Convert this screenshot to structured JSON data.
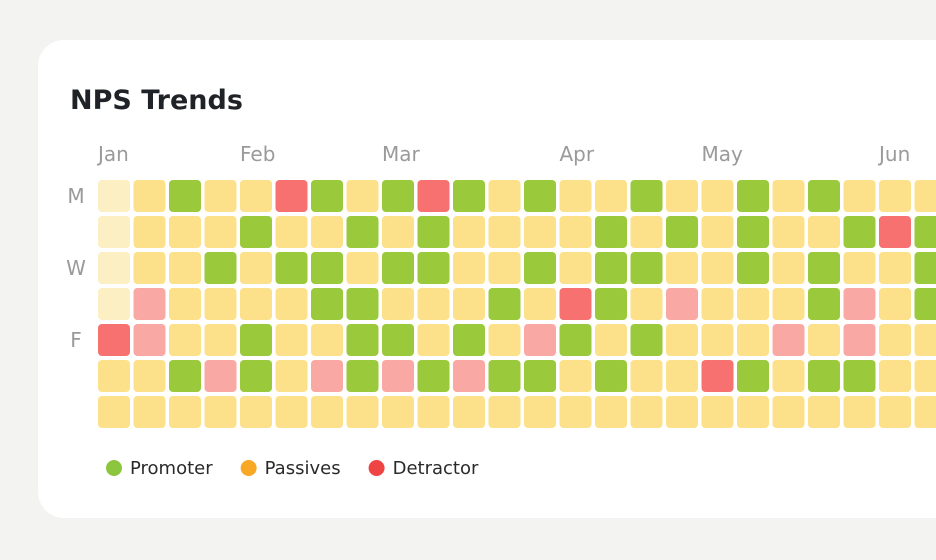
{
  "title": "NPS Trends",
  "columns": [
    "Jan",
    null,
    null,
    null,
    "Feb",
    null,
    null,
    null,
    "Mar",
    null,
    null,
    null,
    null,
    "Apr",
    null,
    null,
    null,
    "May",
    null,
    null,
    null,
    null,
    "Jun",
    null
  ],
  "rows": [
    "M",
    null,
    "W",
    null,
    "F",
    null,
    null
  ],
  "cell_colors": {
    "g": "#9aca3c",
    "y": "#fde08a",
    "l": "#fdefc4",
    "r": "#f87171",
    "s": "#f9a8a4"
  },
  "weeks": [
    [
      "l",
      "l",
      "l",
      "l",
      "r",
      "y",
      "y"
    ],
    [
      "y",
      "y",
      "y",
      "s",
      "s",
      "y",
      "y"
    ],
    [
      "g",
      "y",
      "y",
      "y",
      "y",
      "g",
      "y"
    ],
    [
      "y",
      "y",
      "g",
      "y",
      "y",
      "s",
      "y"
    ],
    [
      "y",
      "g",
      "y",
      "y",
      "g",
      "g",
      "y"
    ],
    [
      "r",
      "y",
      "g",
      "y",
      "y",
      "y",
      "y"
    ],
    [
      "g",
      "y",
      "g",
      "g",
      "y",
      "s",
      "y"
    ],
    [
      "y",
      "g",
      "y",
      "g",
      "g",
      "g",
      "y"
    ],
    [
      "g",
      "y",
      "g",
      "y",
      "g",
      "s",
      "y"
    ],
    [
      "r",
      "g",
      "g",
      "y",
      "y",
      "g",
      "y"
    ],
    [
      "g",
      "y",
      "y",
      "y",
      "g",
      "s",
      "y"
    ],
    [
      "y",
      "y",
      "y",
      "g",
      "y",
      "g",
      "y"
    ],
    [
      "g",
      "y",
      "g",
      "y",
      "s",
      "g",
      "y"
    ],
    [
      "y",
      "y",
      "y",
      "r",
      "g",
      "y",
      "y"
    ],
    [
      "y",
      "g",
      "g",
      "g",
      "y",
      "g",
      "y"
    ],
    [
      "g",
      "y",
      "g",
      "y",
      "g",
      "y",
      "y"
    ],
    [
      "y",
      "g",
      "y",
      "s",
      "y",
      "y",
      "y"
    ],
    [
      "y",
      "y",
      "y",
      "y",
      "y",
      "r",
      "y"
    ],
    [
      "g",
      "g",
      "g",
      "y",
      "y",
      "g",
      "y"
    ],
    [
      "y",
      "y",
      "y",
      "y",
      "s",
      "y",
      "y"
    ],
    [
      "g",
      "y",
      "g",
      "g",
      "y",
      "g",
      "y"
    ],
    [
      "y",
      "g",
      "y",
      "s",
      "s",
      "g",
      "y"
    ],
    [
      "y",
      "r",
      "y",
      "y",
      "y",
      "y",
      "y"
    ],
    [
      "y",
      "g",
      "g",
      "g",
      "y",
      "y",
      "y"
    ]
  ],
  "legend": [
    {
      "label": "Promoter",
      "color": "#8cc63f"
    },
    {
      "label": "Passives",
      "color": "#f9a825"
    },
    {
      "label": "Detractor",
      "color": "#ef4444"
    }
  ]
}
